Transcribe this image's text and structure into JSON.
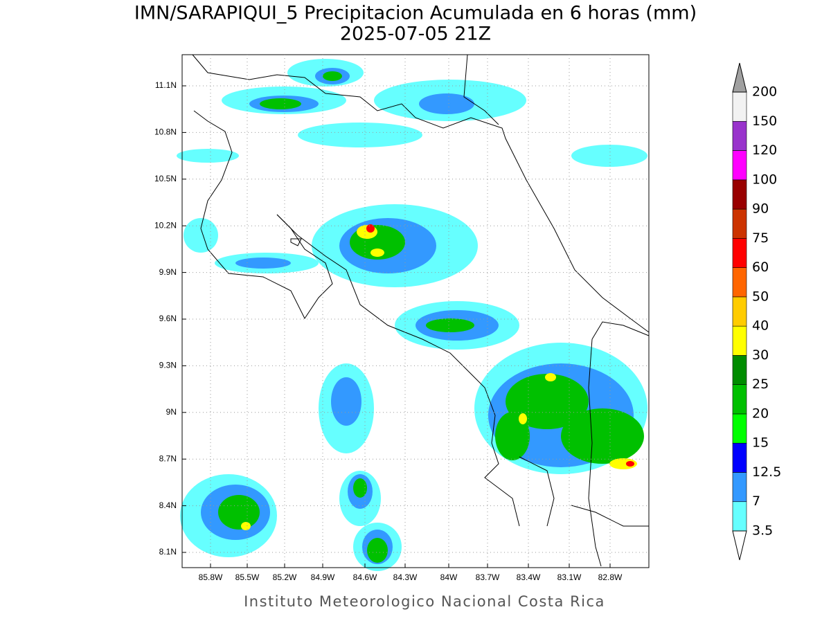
{
  "title": "IMN/SARAPIQUI_5 Precipitacion Acumulada en 6 horas (mm)",
  "subtitle": "2025-07-05 21Z",
  "x_ticks": [
    "85.8W",
    "85.5W",
    "85.2W",
    "84.9W",
    "84.6W",
    "84.3W",
    "84W",
    "83.7W",
    "83.4W",
    "83.1W",
    "82.8W"
  ],
  "y_ticks": [
    "11.1N",
    "10.8N",
    "10.5N",
    "10.2N",
    "9.9N",
    "9.6N",
    "9.3N",
    "9N",
    "8.7N",
    "8.4N",
    "8.1N"
  ],
  "colorbar": {
    "levels": [
      3.5,
      7,
      12.5,
      15,
      20,
      25,
      30,
      40,
      50,
      60,
      75,
      90,
      100,
      120,
      150,
      200
    ],
    "colors": [
      "#66ffff",
      "#3399ff",
      "#0000ff",
      "#00ff00",
      "#00c000",
      "#008c00",
      "#ffff00",
      "#ffcc00",
      "#ff6600",
      "#ff0000",
      "#cc3300",
      "#990000",
      "#ff00ff",
      "#9933cc",
      "#f2f2f2"
    ],
    "under_color": "#ffffff",
    "over_color": "#a0a0a0"
  },
  "footer": "Instituto Meteorologico Nacional Costa Rica"
}
